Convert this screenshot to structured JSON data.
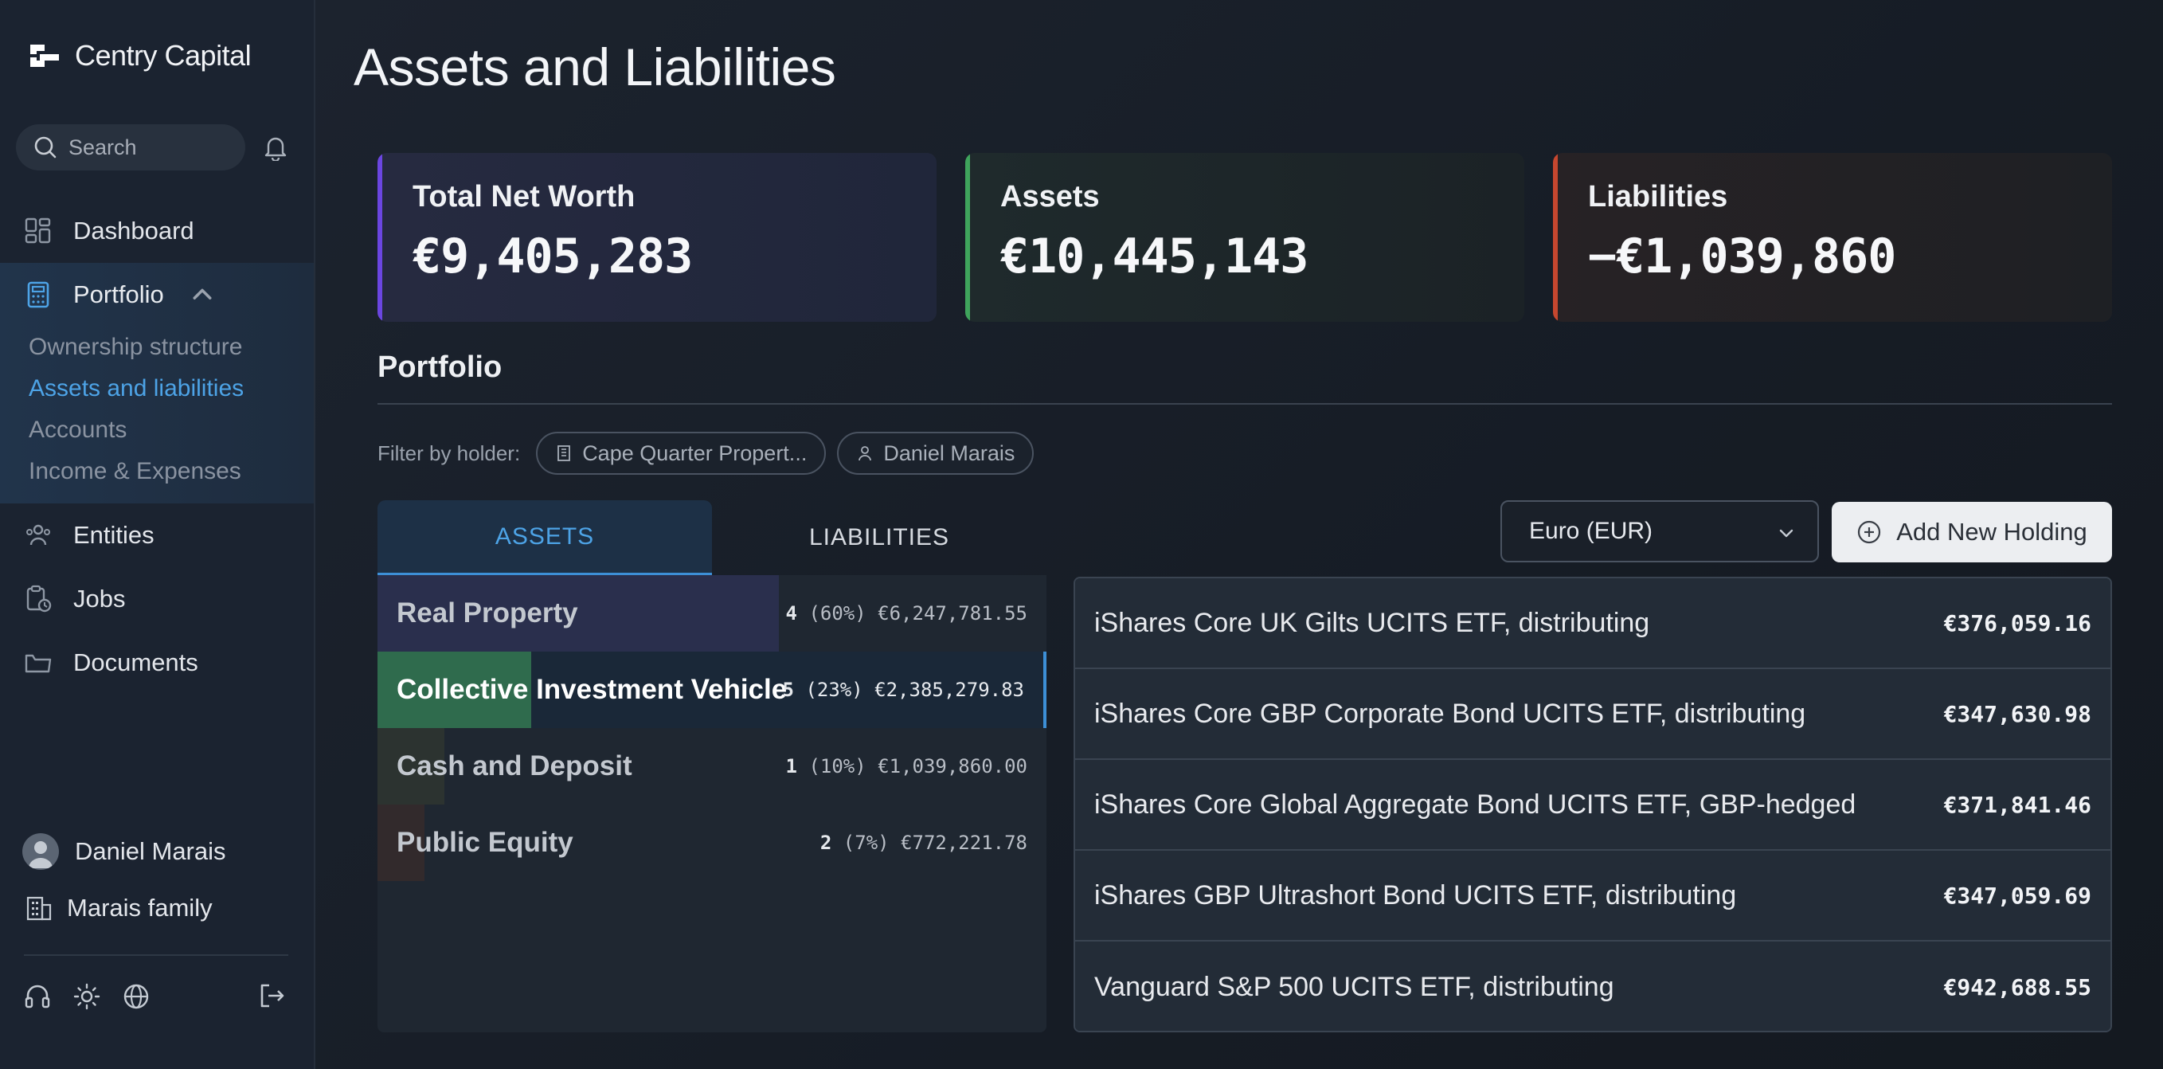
{
  "app": {
    "brand_name": "Centry Capital"
  },
  "search": {
    "placeholder": "Search"
  },
  "nav": {
    "dashboard": "Dashboard",
    "portfolio": "Portfolio",
    "portfolio_sub": [
      "Ownership structure",
      "Assets and liabilities",
      "Accounts",
      "Income & Expenses"
    ],
    "entities": "Entities",
    "jobs": "Jobs",
    "documents": "Documents"
  },
  "user": {
    "name": "Daniel Marais",
    "family": "Marais family"
  },
  "page": {
    "title": "Assets and Liabilities"
  },
  "summary": [
    {
      "label": "Total Net Worth",
      "value": "€9,405,283",
      "accent": "#6b46e0"
    },
    {
      "label": "Assets",
      "value": "€10,445,143",
      "accent": "#3fa45c"
    },
    {
      "label": "Liabilities",
      "value": "−€1,039,860",
      "accent": "#c6472f"
    }
  ],
  "portfolio": {
    "title": "Portfolio",
    "filter_label": "Filter by holder:",
    "chips": [
      "Cape Quarter Propert...",
      "Daniel Marais"
    ],
    "tabs": [
      "ASSETS",
      "LIABILITIES"
    ],
    "currency": "Euro (EUR)",
    "add_button": "Add New Holding",
    "categories": [
      {
        "name": "Real Property",
        "count": "4",
        "pct": "(60%)",
        "amount": "€6,247,781.55",
        "share": 0.6,
        "color": "#2a2f4d"
      },
      {
        "name": "Collective Investment Vehicle",
        "count": "5",
        "pct": "(23%)",
        "amount": "€2,385,279.83",
        "share": 0.23,
        "color": "#2f6b4d"
      },
      {
        "name": "Cash and Deposit",
        "count": "1",
        "pct": "(10%)",
        "amount": "€1,039,860.00",
        "share": 0.1,
        "color": "#2c3330"
      },
      {
        "name": "Public Equity",
        "count": "2",
        "pct": "(7%)",
        "amount": "€772,221.78",
        "share": 0.07,
        "color": "#322a2c"
      }
    ],
    "holdings": [
      {
        "name": "iShares Core UK Gilts UCITS ETF, distributing",
        "value": "€376,059.16"
      },
      {
        "name": "iShares Core GBP Corporate Bond UCITS ETF, distributing",
        "value": "€347,630.98"
      },
      {
        "name": "iShares Core Global Aggregate Bond UCITS ETF, GBP-hedged",
        "value": "€371,841.46"
      },
      {
        "name": "iShares GBP Ultrashort Bond UCITS ETF, distributing",
        "value": "€347,059.69"
      },
      {
        "name": "Vanguard S&P 500 UCITS ETF, distributing",
        "value": "€942,688.55"
      }
    ]
  }
}
